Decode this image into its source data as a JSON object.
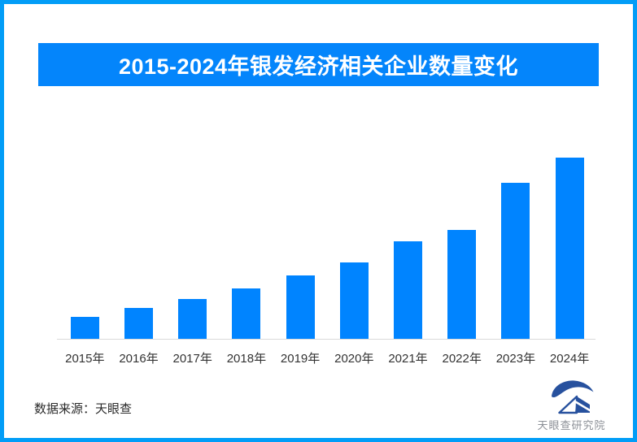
{
  "frame": {
    "border_color": "#029df7",
    "background_color": "#ffffff"
  },
  "header": {
    "title": "2015-2024年银发经济相关企业数量变化",
    "background_color": "#0485fb",
    "text_color": "#ffffff"
  },
  "chart_data": {
    "type": "bar",
    "title": "2015-2024年银发经济相关企业数量变化",
    "categories": [
      "2015年",
      "2016年",
      "2017年",
      "2018年",
      "2019年",
      "2020年",
      "2021年",
      "2022年",
      "2023年",
      "2024年"
    ],
    "values": [
      12,
      17,
      22,
      28,
      35,
      42,
      54,
      60,
      86,
      100
    ],
    "value_note": "relative bar heights estimated from pixels (2024 = 100); chart shows no numeric axis or data labels",
    "xlabel": "",
    "ylabel": "",
    "ylim": [
      0,
      100
    ],
    "gridlines": false,
    "legend": "none",
    "bar_color": "#0084ff",
    "axis_line_color": "#d9d9d9",
    "tick_label_color": "#333333"
  },
  "footer": {
    "source_label": "数据来源：天眼查",
    "logo_text": "天眼查研究院",
    "logo_color": "#27519e",
    "logo_text_color": "#8c9097"
  }
}
